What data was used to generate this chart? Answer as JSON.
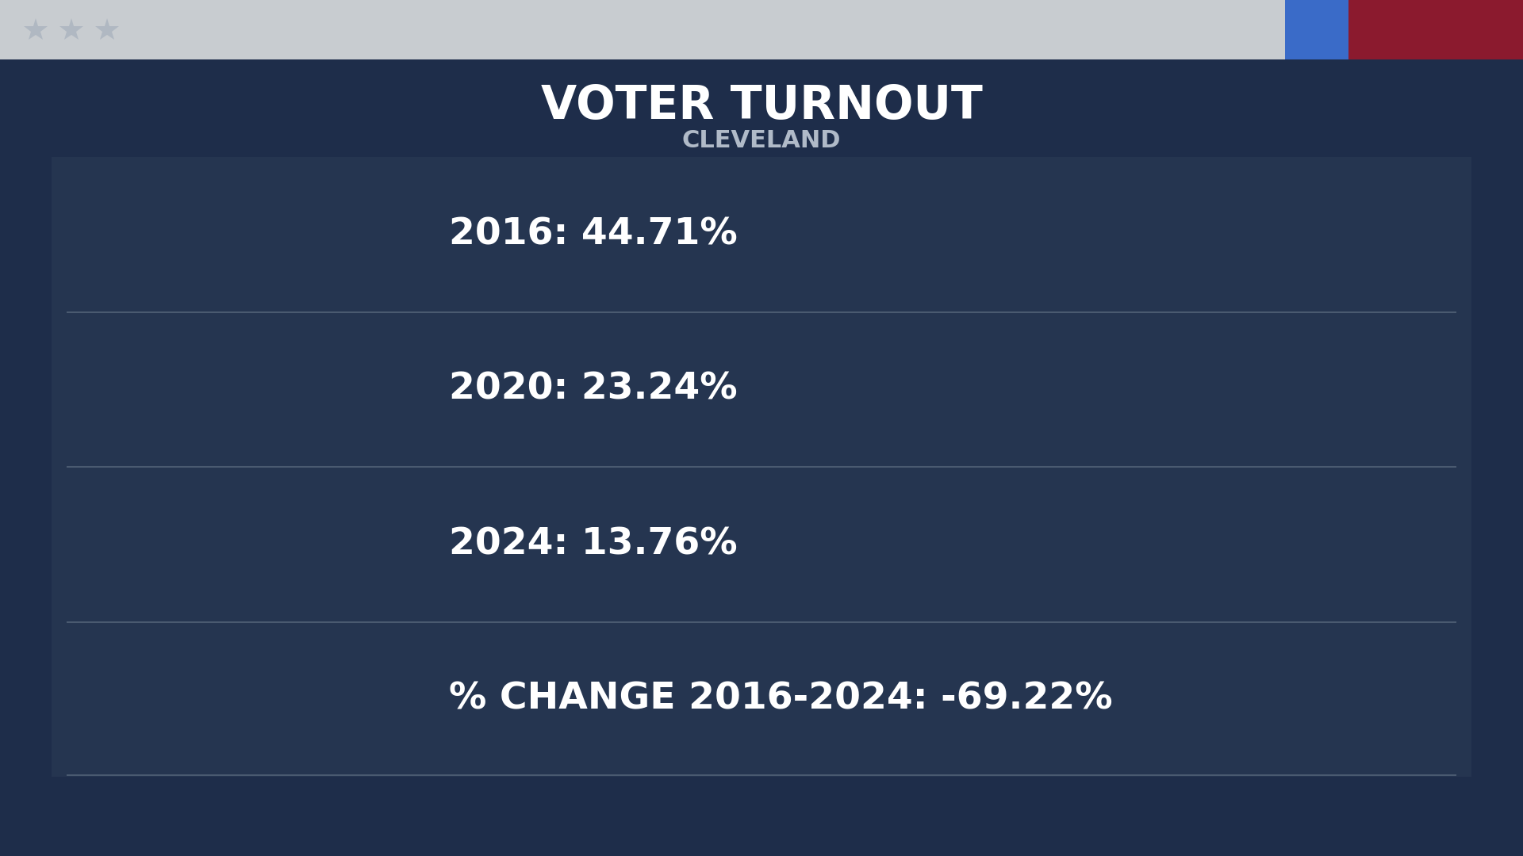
{
  "title": "VOTER TURNOUT",
  "subtitle": "CLEVELAND",
  "rows": [
    "2016: 44.71%",
    "2020: 23.24%",
    "2024: 13.76%",
    "% CHANGE 2016-2024: -69.22%"
  ],
  "bg_color": "#1e2d4a",
  "header_bg": "#c8ccd0",
  "header_accent_blue": "#3a6bc8",
  "header_accent_red": "#8b1a2e",
  "title_color": "#ffffff",
  "subtitle_color": "#b0bac8",
  "row_text_color": "#ffffff",
  "divider_color": "#4a5a70",
  "table_bg": "#253550",
  "star_color": "#b0b8c2",
  "title_fontsize": 42,
  "subtitle_fontsize": 22,
  "row_fontsize": 34
}
